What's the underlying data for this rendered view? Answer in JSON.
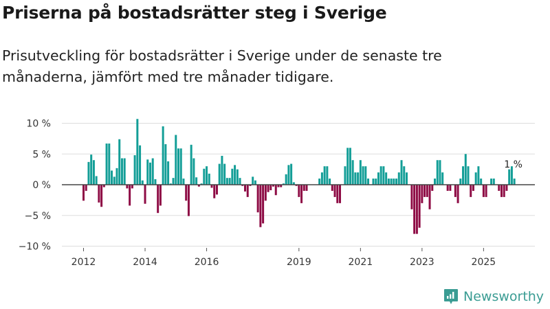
{
  "header": {
    "title": "Priserna på bostadsrätter steg i Sverige",
    "subtitle": "Prisutveckling för bostadsrätter i Sverige under de senaste tre månaderna, jämfört med tre månader tidigare."
  },
  "brand": {
    "name": "Newsworthy",
    "icon": "bar-chart-badge-icon",
    "color": "#3a9c93"
  },
  "colors": {
    "positive": "#139e97",
    "negative": "#8e0c45",
    "zero_line": "#444444",
    "grid": "#dddddd"
  },
  "chart_data": {
    "type": "bar",
    "title": "Priserna på bostadsrätter steg i Sverige",
    "xlabel": "",
    "ylabel": "",
    "ylim": [
      -10,
      10
    ],
    "yticks": [
      10,
      5,
      0,
      -5,
      -10
    ],
    "ytick_labels": [
      "10 %",
      "5 %",
      "0 %",
      "−5 %",
      "−10 %"
    ],
    "xticks": [
      "2012",
      "2014",
      "2016",
      "2019",
      "2021",
      "2023",
      "2025"
    ],
    "x_start": "2012-01",
    "frequency": "monthly",
    "grid": true,
    "annotation": {
      "label": "1 %",
      "target": "last"
    },
    "values": [
      -2.6,
      -1.0,
      3.7,
      4.9,
      4.0,
      1.4,
      -2.9,
      -3.6,
      -0.4,
      6.7,
      6.7,
      2.3,
      1.3,
      2.7,
      7.4,
      4.3,
      4.3,
      -0.6,
      -3.4,
      -0.6,
      4.8,
      10.7,
      6.4,
      0.7,
      -3.1,
      4.1,
      3.6,
      4.3,
      0.9,
      -4.6,
      -3.4,
      9.5,
      6.6,
      3.8,
      0.2,
      1.1,
      8.1,
      5.9,
      5.9,
      1.0,
      -2.6,
      -5.1,
      6.5,
      4.3,
      1.2,
      -0.3,
      0.2,
      2.6,
      3.0,
      1.8,
      -0.5,
      -2.2,
      -1.6,
      3.4,
      4.7,
      3.4,
      1.1,
      1.1,
      2.6,
      3.2,
      2.5,
      1.1,
      -0.2,
      -1.1,
      -2.0,
      -0.2,
      1.3,
      0.7,
      -4.5,
      -6.9,
      -6.3,
      -2.6,
      -1.2,
      -0.9,
      -0.3,
      -1.7,
      -0.4,
      -0.4,
      0.2,
      1.7,
      3.2,
      3.4,
      0.4,
      -0.2,
      -2.0,
      -3.0,
      -1.0,
      -1.0,
      0.0,
      0.0,
      0.0,
      0.0,
      1.0,
      2.0,
      3.0,
      3.0,
      1.0,
      -1.0,
      -2.0,
      -3.0,
      -3.0,
      0.0,
      3.0,
      6.0,
      6.0,
      4.0,
      2.0,
      2.0,
      4.0,
      3.0,
      3.0,
      1.0,
      0.0,
      1.0,
      1.0,
      2.0,
      3.0,
      3.0,
      2.0,
      1.0,
      1.0,
      1.0,
      1.0,
      2.0,
      4.0,
      3.0,
      2.0,
      0.0,
      -4.0,
      -8.0,
      -8.0,
      -7.0,
      -3.0,
      -2.0,
      -2.0,
      -4.0,
      -1.0,
      1.0,
      4.0,
      4.0,
      2.0,
      0.0,
      -1.0,
      -1.0,
      0.0,
      -2.0,
      -3.0,
      1.0,
      3.0,
      5.0,
      3.0,
      -2.0,
      -1.0,
      2.0,
      3.0,
      1.0,
      -2.0,
      -2.0,
      0.0,
      1.0,
      1.0,
      0.0,
      -1.0,
      -2.0,
      -2.0,
      -1.0,
      2.5,
      3.0,
      1.0
    ]
  }
}
